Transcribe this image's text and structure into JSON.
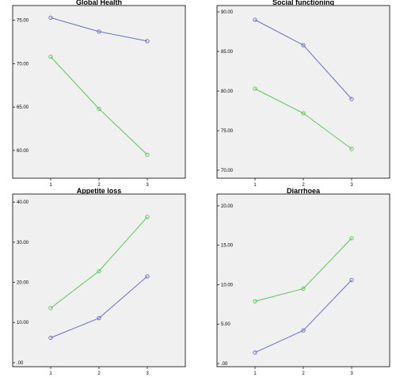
{
  "colors": {
    "series_blue": "#6a6fc4",
    "series_green": "#5cc45c",
    "plot_bg": "#f0f0f0"
  },
  "chart_data": [
    {
      "type": "line",
      "title": "Global Health",
      "x": [
        1,
        2,
        3
      ],
      "ylim": [
        56.8,
        76.7
      ],
      "yticks": [
        "60.00",
        "65.00",
        "70.00",
        "75.00"
      ],
      "ytick_values": [
        60,
        65,
        70,
        75
      ],
      "series": [
        {
          "color": "#6a6fc4",
          "values": [
            75.3,
            73.7,
            72.6
          ]
        },
        {
          "color": "#5cc45c",
          "values": [
            70.8,
            64.8,
            59.5
          ]
        }
      ]
    },
    {
      "type": "line",
      "title": "Social functioning",
      "x": [
        1,
        2,
        3
      ],
      "ylim": [
        69.0,
        90.8
      ],
      "yticks": [
        "70.00",
        "75.00",
        "80.00",
        "85.00",
        "90.00"
      ],
      "ytick_values": [
        70,
        75,
        80,
        85,
        90
      ],
      "series": [
        {
          "color": "#6a6fc4",
          "values": [
            89.0,
            85.8,
            79.0
          ]
        },
        {
          "color": "#5cc45c",
          "values": [
            80.3,
            77.2,
            72.7
          ]
        }
      ]
    },
    {
      "type": "line",
      "title": "Appetite loss",
      "x": [
        1,
        2,
        3
      ],
      "ylim": [
        -1.0,
        42.0
      ],
      "yticks": [
        ".00",
        "10.00",
        "20.00",
        "30.00",
        "40.00"
      ],
      "ytick_values": [
        0,
        10,
        20,
        30,
        40
      ],
      "series": [
        {
          "color": "#6a6fc4",
          "values": [
            6.2,
            11.1,
            21.5
          ]
        },
        {
          "color": "#5cc45c",
          "values": [
            13.6,
            22.8,
            36.3
          ]
        }
      ]
    },
    {
      "type": "line",
      "title": "Diarrhoea",
      "x": [
        1,
        2,
        3
      ],
      "ylim": [
        -0.4,
        21.5
      ],
      "yticks": [
        ".00",
        "5.00",
        "10.00",
        "15.00",
        "20.00"
      ],
      "ytick_values": [
        0,
        5,
        10,
        15,
        20
      ],
      "series": [
        {
          "color": "#6a6fc4",
          "values": [
            1.4,
            4.2,
            10.6
          ]
        },
        {
          "color": "#5cc45c",
          "values": [
            7.9,
            9.5,
            15.9
          ]
        }
      ]
    }
  ]
}
